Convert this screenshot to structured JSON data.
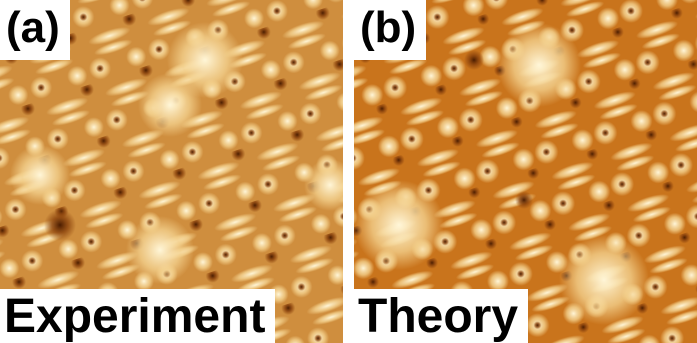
{
  "panels": [
    {
      "tag": "(a)",
      "caption": "Experiment"
    },
    {
      "tag": "(b)",
      "caption": "Theory"
    }
  ]
}
